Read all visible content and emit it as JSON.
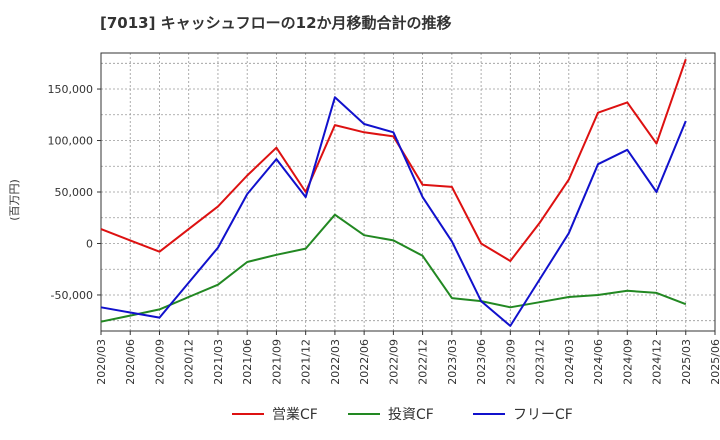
{
  "chart_data": {
    "type": "line",
    "title": "[7013]  キャッシュフローの12か月移動合計の推移",
    "ylabel": "(百万円)",
    "xlabel": "",
    "ylim": [
      -85000,
      185000
    ],
    "yticks": [
      -50000,
      0,
      50000,
      100000,
      150000
    ],
    "ytick_labels": [
      "-50,000",
      "0",
      "50,000",
      "100,000",
      "150,000"
    ],
    "categories": [
      "2020/03",
      "2020/06",
      "2020/09",
      "2020/12",
      "2021/03",
      "2021/06",
      "2021/09",
      "2021/12",
      "2022/03",
      "2022/06",
      "2022/09",
      "2022/12",
      "2023/03",
      "2023/06",
      "2023/09",
      "2023/12",
      "2024/03",
      "2024/06",
      "2024/09",
      "2024/12",
      "2025/03",
      "2025/06"
    ],
    "grid": true,
    "legend_position": "bottom",
    "series": [
      {
        "name": "営業CF",
        "color": "#dd1111",
        "values": [
          14000,
          3000,
          -8000,
          14000,
          36000,
          66000,
          93000,
          50000,
          115000,
          108000,
          104000,
          57000,
          55000,
          0,
          -17000,
          20000,
          62000,
          127000,
          137000,
          97000,
          179000,
          null
        ]
      },
      {
        "name": "投資CF",
        "color": "#228822",
        "values": [
          -76000,
          -70000,
          -64000,
          -52000,
          -40000,
          -18000,
          -11000,
          -5000,
          28000,
          8000,
          3000,
          -12000,
          -53000,
          -56000,
          -62000,
          -57000,
          -52000,
          -50000,
          -46000,
          -48000,
          -59000,
          null
        ]
      },
      {
        "name": "フリーCF",
        "color": "#1111cc",
        "values": [
          -62000,
          -67000,
          -72000,
          -38000,
          -4000,
          48000,
          82000,
          45000,
          142000,
          116000,
          108000,
          45000,
          2000,
          -56000,
          -80000,
          -35000,
          10000,
          77000,
          91000,
          50000,
          119000,
          null
        ]
      }
    ]
  }
}
